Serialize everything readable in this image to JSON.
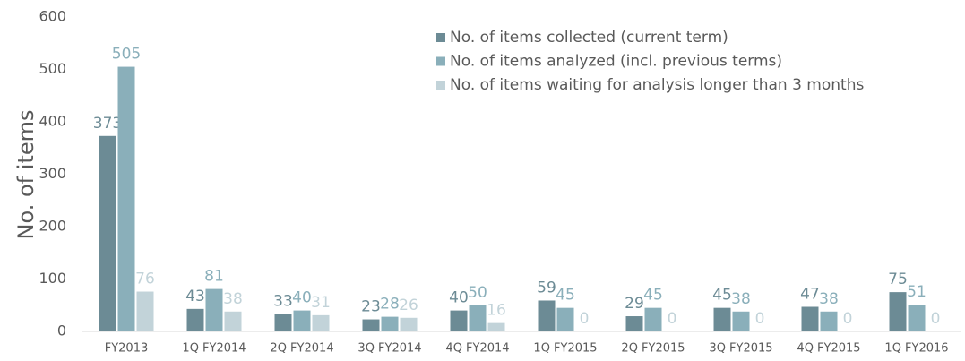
{
  "chart_data": {
    "type": "bar",
    "y_label": "No. of items",
    "categories": [
      "FY2013",
      "1Q FY2014",
      "2Q FY2014",
      "3Q FY2014",
      "4Q FY2014",
      "1Q FY2015",
      "2Q FY2015",
      "3Q FY2015",
      "4Q FY2015",
      "1Q FY2016"
    ],
    "series": [
      {
        "name": "No. of items collected (current term)",
        "color": "#6c8b95",
        "values": [
          373,
          43,
          33,
          23,
          40,
          59,
          29,
          45,
          47,
          75
        ]
      },
      {
        "name": "No. of items analyzed (incl. previous terms)",
        "color": "#8aafba",
        "values": [
          505,
          81,
          40,
          28,
          50,
          45,
          45,
          38,
          38,
          51
        ]
      },
      {
        "name": "No. of items waiting for analysis longer than 3 months",
        "color": "#c2d3d9",
        "values": [
          76,
          38,
          31,
          26,
          16,
          0,
          0,
          0,
          0,
          0
        ]
      }
    ],
    "ylim": [
      0,
      600
    ],
    "yticks": [
      0,
      100,
      200,
      300,
      400,
      500,
      600
    ],
    "grid": false,
    "legend": "top-right"
  }
}
